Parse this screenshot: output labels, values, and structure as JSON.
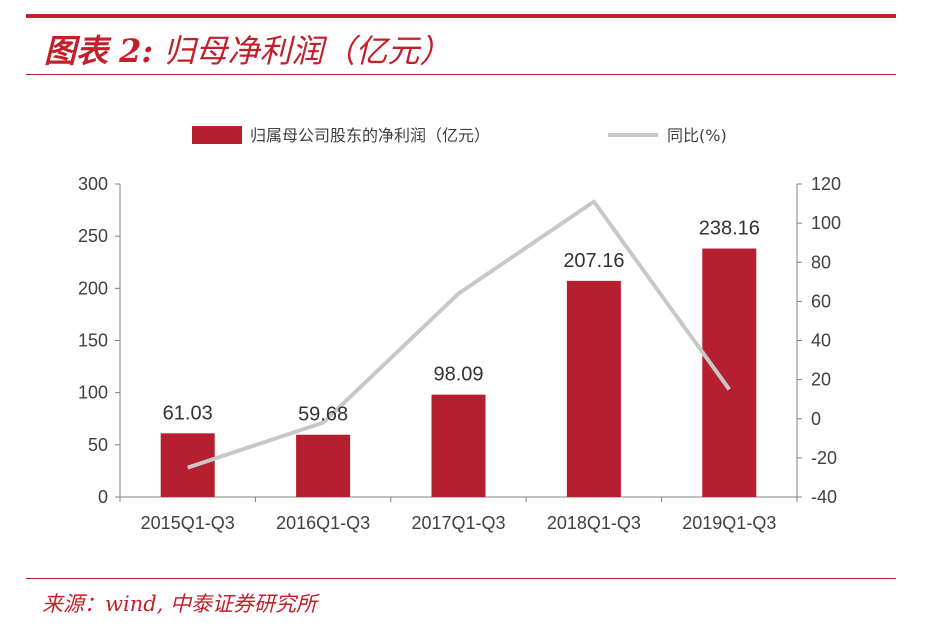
{
  "header": {
    "title_prefix": "图表 2:",
    "title_main": "归母净利润（亿元）"
  },
  "source": "来源：wind, 中泰证券研究所",
  "colors": {
    "accent": "#c21f2a",
    "bar": "#b51f30",
    "line": "#c8c8c8",
    "axis": "#808080"
  },
  "chart_data": {
    "type": "bar",
    "categories": [
      "2015Q1-Q3",
      "2016Q1-Q3",
      "2017Q1-Q3",
      "2018Q1-Q3",
      "2019Q1-Q3"
    ],
    "series": [
      {
        "name": "归属母公司股东的净利润（亿元）",
        "type": "bar",
        "axis": "left",
        "values": [
          61.03,
          59.68,
          98.09,
          207.16,
          238.16
        ],
        "labels": [
          "61.03",
          "59.68",
          "98.09",
          "207.16",
          "238.16"
        ]
      },
      {
        "name": "同比(%)",
        "type": "line",
        "axis": "right",
        "values": [
          -25,
          -2,
          64,
          111,
          15
        ]
      }
    ],
    "y_left": {
      "min": 0,
      "max": 300,
      "ticks": [
        0,
        50,
        100,
        150,
        200,
        250,
        300
      ]
    },
    "y_right": {
      "min": -40,
      "max": 120,
      "ticks": [
        -40,
        -20,
        0,
        20,
        40,
        60,
        80,
        100,
        120
      ]
    },
    "legend_position": "top",
    "grid": false
  }
}
